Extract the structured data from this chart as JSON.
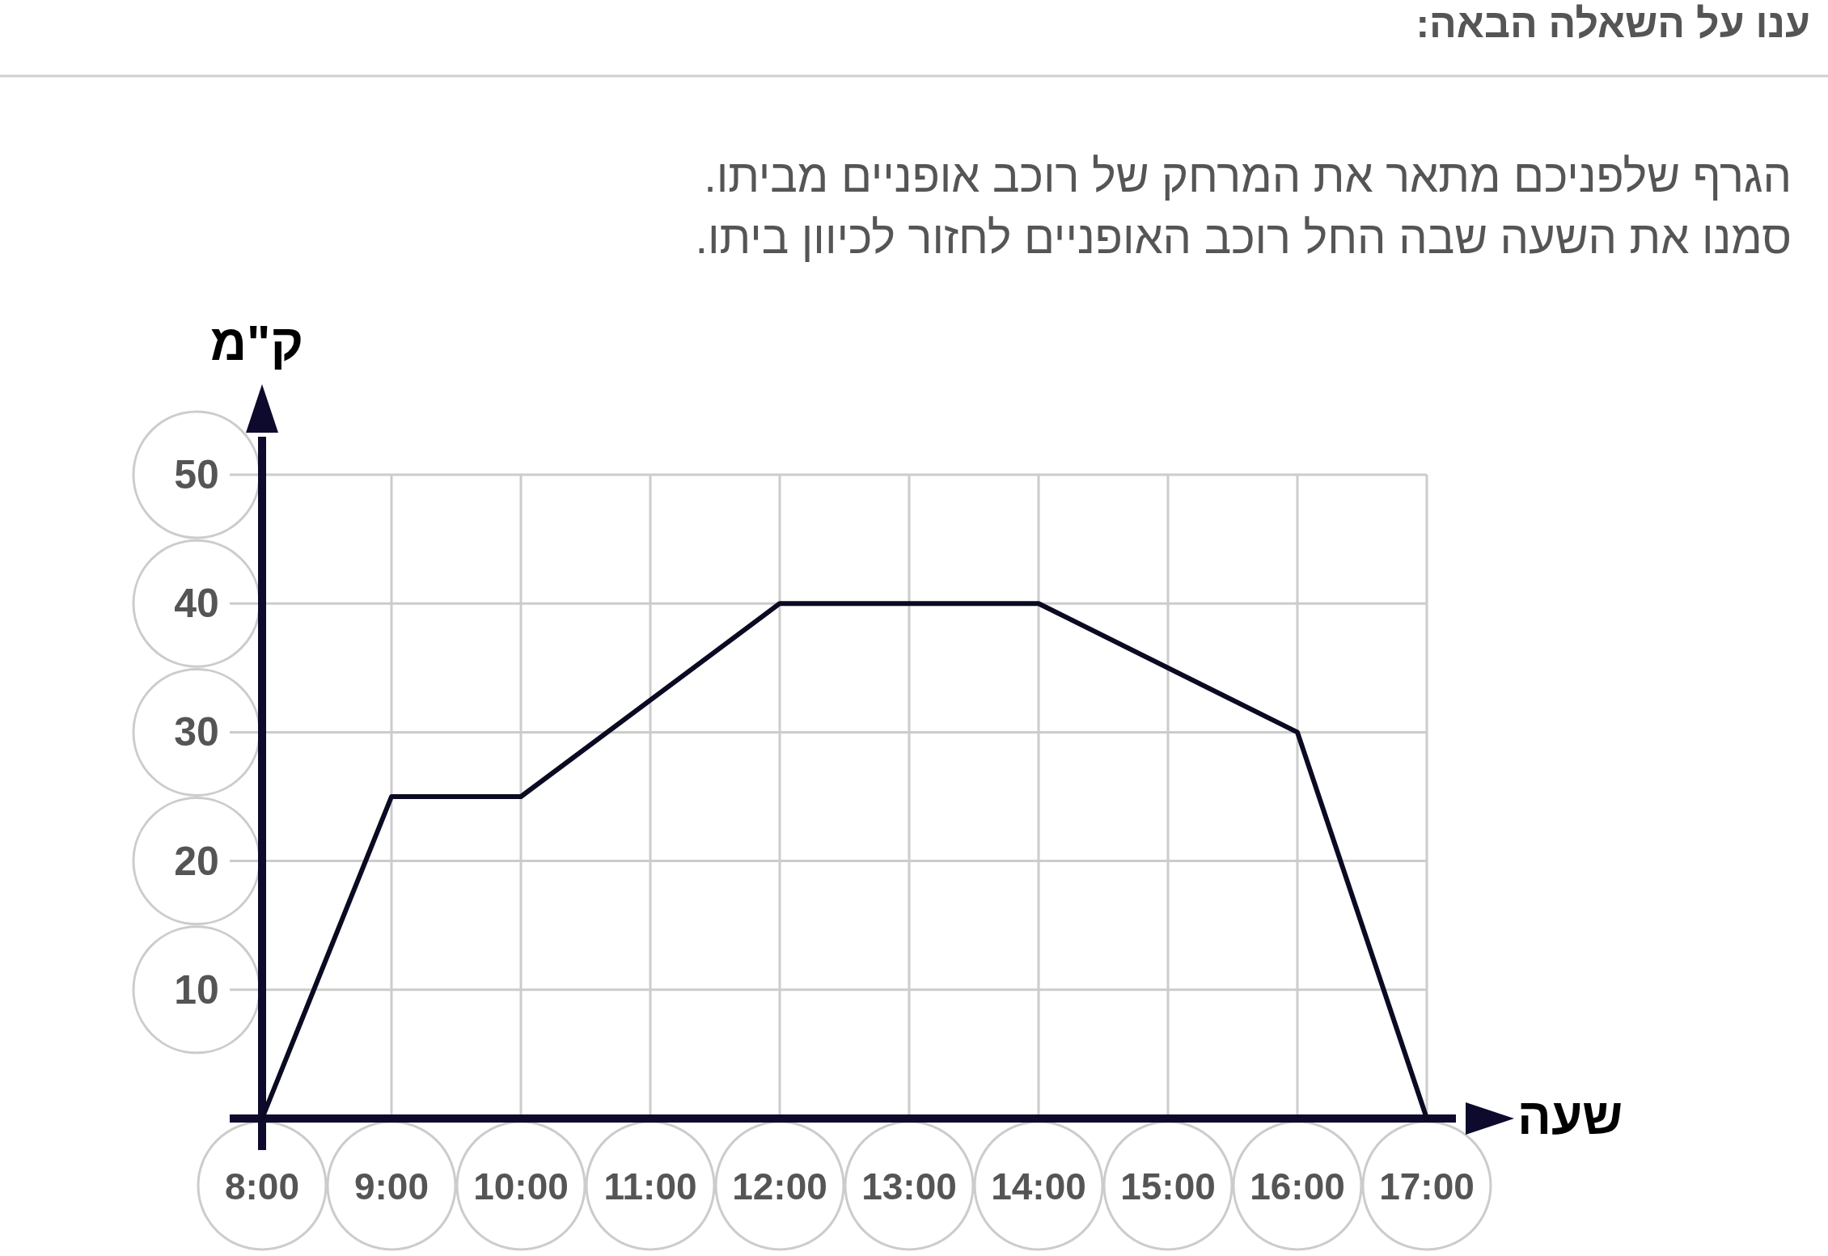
{
  "chart_data": {
    "type": "line",
    "title": "ענו על השאלה הבאה:",
    "subtitle": "הגרף שלפניכם מתאר את המרחק של רוכב אופניים מביתו.\nסמנו את השעה שבה החל רוכב האופניים לחזור לכיוון ביתו.",
    "xlabel": "שעה",
    "ylabel": "ק\"מ",
    "x": [
      8,
      9,
      10,
      12,
      14,
      16,
      17
    ],
    "series": [
      {
        "color": "#0a0a23",
        "values": [
          0,
          25,
          25,
          40,
          40,
          30,
          0
        ]
      }
    ],
    "xlim": [
      8,
      17
    ],
    "ylim": [
      0,
      50
    ],
    "xticks": [
      {
        "value": 8,
        "label": "8:00"
      },
      {
        "value": 9,
        "label": "9:00"
      },
      {
        "value": 10,
        "label": "10:00"
      },
      {
        "value": 11,
        "label": "11:00"
      },
      {
        "value": 12,
        "label": "12:00"
      },
      {
        "value": 13,
        "label": "13:00"
      },
      {
        "value": 14,
        "label": "14:00"
      },
      {
        "value": 15,
        "label": "15:00"
      },
      {
        "value": 16,
        "label": "16:00"
      },
      {
        "value": 17,
        "label": "17:00"
      }
    ],
    "yticks": [
      10,
      20,
      30,
      40,
      50
    ],
    "grid": true,
    "marker": "none",
    "line_style": "solid"
  }
}
